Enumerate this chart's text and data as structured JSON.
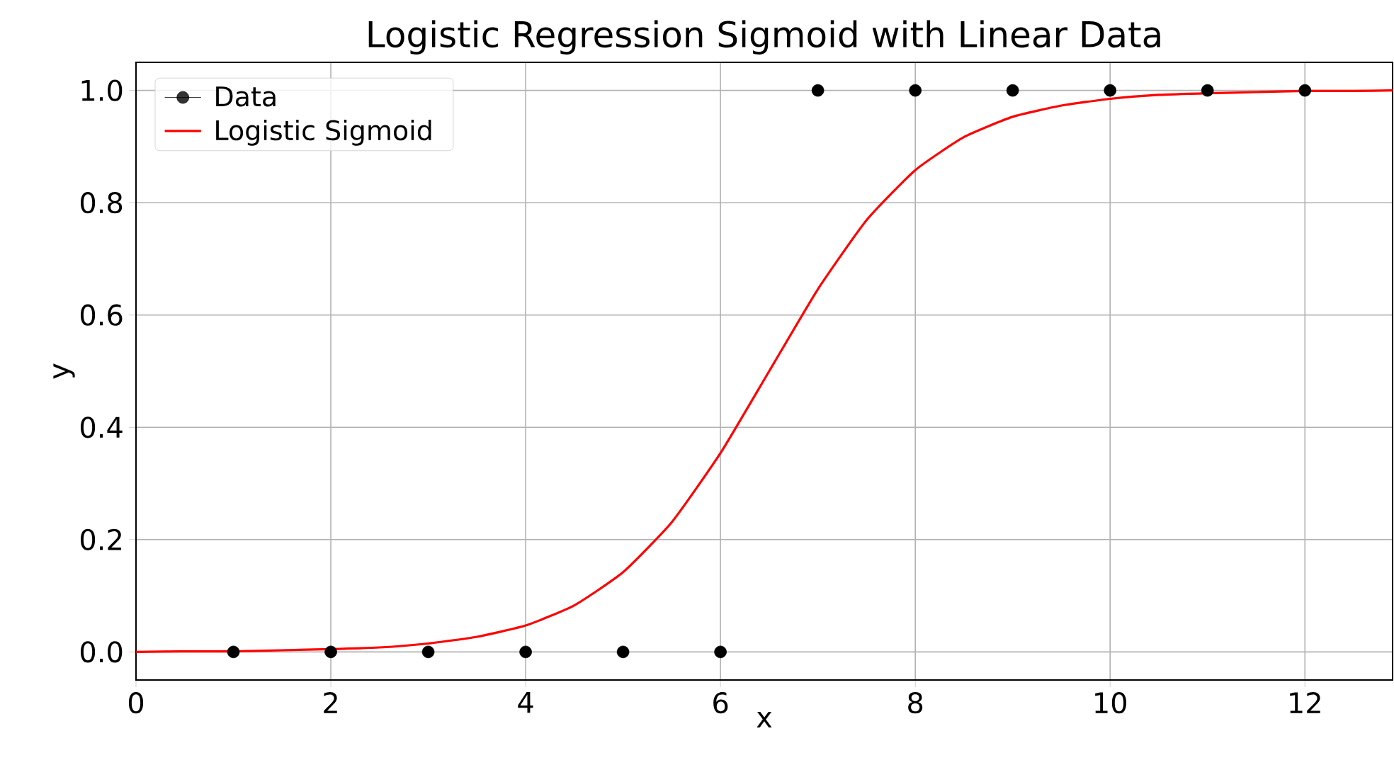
{
  "chart_data": {
    "type": "scatter",
    "title": "Logistic Regression Sigmoid with Linear Data",
    "xlabel": "x",
    "ylabel": "y",
    "xlim": [
      0,
      12.9
    ],
    "ylim": [
      -0.05,
      1.05
    ],
    "xticks": [
      0,
      2,
      4,
      6,
      8,
      10,
      12
    ],
    "yticks": [
      {
        "value": 0,
        "label": "0.0"
      },
      {
        "value": 0.2,
        "label": "0.2"
      },
      {
        "value": 0.4,
        "label": "0.4"
      },
      {
        "value": 0.6,
        "label": "0.6"
      },
      {
        "value": 0.8,
        "label": "0.8"
      },
      {
        "value": 1,
        "label": "1.0"
      }
    ],
    "grid": true,
    "legend": "top left",
    "series": [
      {
        "name": "Data",
        "marker": "circle",
        "color": "#000000",
        "x": [
          1,
          2,
          3,
          4,
          5,
          6,
          7,
          8,
          9,
          10,
          11,
          12
        ],
        "values": [
          0,
          0,
          0,
          0,
          0,
          0,
          1,
          1,
          1,
          1,
          1,
          1
        ]
      },
      {
        "name": "Logistic Sigmoid",
        "type": "line",
        "marker": "none",
        "color": "#ff0000",
        "x": [
          0,
          0.5,
          1,
          1.5,
          2,
          2.5,
          3,
          3.5,
          4,
          4.5,
          5,
          5.5,
          6,
          6.5,
          7,
          7.5,
          8,
          8.5,
          9,
          9.5,
          10,
          10.5,
          11,
          11.5,
          12,
          12.5,
          12.9
        ],
        "values": [
          0,
          0.001,
          0.001,
          0.003,
          0.005,
          0.008,
          0.015,
          0.027,
          0.047,
          0.083,
          0.142,
          0.231,
          0.354,
          0.5,
          0.646,
          0.769,
          0.858,
          0.917,
          0.953,
          0.973,
          0.985,
          0.992,
          0.995,
          0.997,
          0.999,
          0.999,
          1.0
        ]
      }
    ]
  }
}
